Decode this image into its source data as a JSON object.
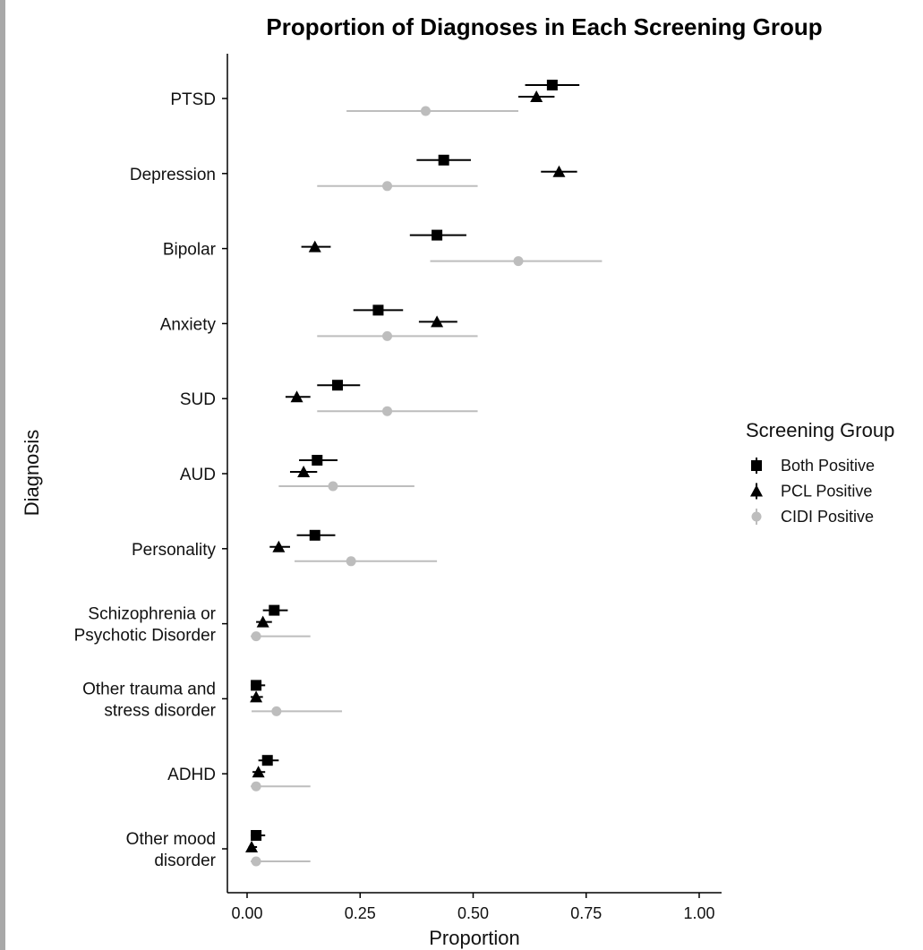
{
  "chart_data": {
    "type": "scatter",
    "title": "Proportion of Diagnoses in Each Screening Group",
    "xlabel": "Proportion",
    "ylabel": "Diagnosis",
    "xlim": [
      0,
      1
    ],
    "x_ticks": [
      "0.00",
      "0.25",
      "0.50",
      "0.75",
      "1.00"
    ],
    "x_tick_values": [
      0,
      0.25,
      0.5,
      0.75,
      1.0
    ],
    "categories": [
      [
        "PTSD"
      ],
      [
        "Depression"
      ],
      [
        "Bipolar"
      ],
      [
        "Anxiety"
      ],
      [
        "SUD"
      ],
      [
        "AUD"
      ],
      [
        "Personality"
      ],
      [
        "Schizophrenia or",
        "Psychotic Disorder"
      ],
      [
        "Other trauma and",
        "stress disorder"
      ],
      [
        "ADHD"
      ],
      [
        "Other mood",
        "disorder"
      ]
    ],
    "grid": false,
    "legend": {
      "title": "Screening Group",
      "position": "right"
    },
    "series": [
      {
        "name": "Both Positive",
        "marker": "square",
        "color": "#000000",
        "values": [
          0.675,
          0.435,
          0.42,
          0.29,
          0.2,
          0.155,
          0.15,
          0.06,
          0.02,
          0.045,
          0.02
        ],
        "lower": [
          0.615,
          0.375,
          0.36,
          0.235,
          0.155,
          0.115,
          0.11,
          0.035,
          0.008,
          0.025,
          0.008
        ],
        "upper": [
          0.735,
          0.495,
          0.485,
          0.345,
          0.25,
          0.2,
          0.195,
          0.09,
          0.04,
          0.07,
          0.04
        ]
      },
      {
        "name": "PCL Positive",
        "marker": "triangle",
        "color": "#000000",
        "values": [
          0.64,
          0.69,
          0.15,
          0.42,
          0.11,
          0.125,
          0.07,
          0.035,
          0.02,
          0.025,
          0.01
        ],
        "lower": [
          0.6,
          0.65,
          0.12,
          0.38,
          0.085,
          0.095,
          0.05,
          0.02,
          0.008,
          0.012,
          0.003
        ],
        "upper": [
          0.68,
          0.73,
          0.185,
          0.465,
          0.14,
          0.155,
          0.095,
          0.055,
          0.035,
          0.04,
          0.022
        ]
      },
      {
        "name": "CIDI Positive",
        "marker": "circle",
        "color": "#bdbdbd",
        "values": [
          0.395,
          0.31,
          0.6,
          0.31,
          0.31,
          0.19,
          0.23,
          0.02,
          0.065,
          0.02,
          0.02
        ],
        "lower": [
          0.22,
          0.155,
          0.405,
          0.155,
          0.155,
          0.07,
          0.105,
          0.008,
          0.01,
          0.008,
          0.008
        ],
        "upper": [
          0.6,
          0.51,
          0.785,
          0.51,
          0.51,
          0.37,
          0.42,
          0.14,
          0.21,
          0.14,
          0.14
        ]
      }
    ]
  }
}
